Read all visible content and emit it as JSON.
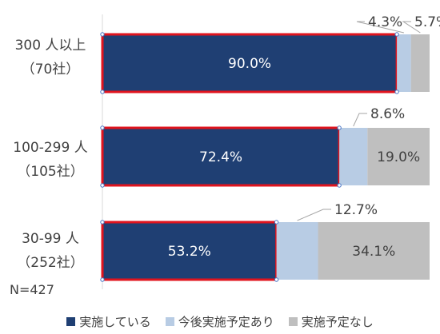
{
  "chart_data": {
    "type": "bar",
    "orientation": "horizontal",
    "stacked": true,
    "categories": [
      {
        "line1": "300 人以上",
        "line2": "（70社）"
      },
      {
        "line1": "100-299 人",
        "line2": "（105社）"
      },
      {
        "line1": "30-99 人",
        "line2": "（252社）"
      }
    ],
    "series": [
      {
        "name": "実施している",
        "color": "#1f3f73",
        "values": [
          90.0,
          72.4,
          53.2
        ],
        "labels": [
          "90.0%",
          "72.4%",
          "53.2%"
        ]
      },
      {
        "name": "今後実施予定あり",
        "color": "#b8cce4",
        "values": [
          4.3,
          8.6,
          12.7
        ],
        "labels": [
          "4.3%",
          "8.6%",
          "12.7%"
        ]
      },
      {
        "name": "実施予定なし",
        "color": "#bfbfbf",
        "values": [
          5.7,
          19.0,
          34.1
        ],
        "labels": [
          "5.7%",
          "19.0%",
          "34.1%"
        ]
      }
    ],
    "xlim": [
      0,
      100
    ],
    "grid": false,
    "legend_position": "bottom",
    "highlight_series": "実施している",
    "highlight_color": "#e0141e",
    "note": "N=427"
  }
}
